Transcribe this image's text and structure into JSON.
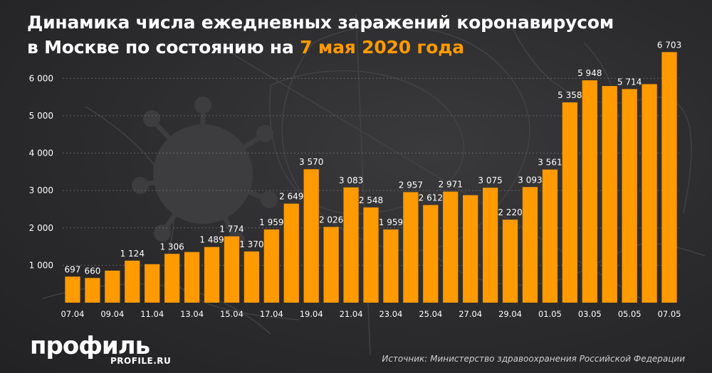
{
  "header": {
    "title_line1": "Динамика числа ежедневных заражений коронавирусом",
    "title_line2_prefix": "в Москве по состоянию на ",
    "title_line2_highlight": "7 мая 2020 года"
  },
  "footer": {
    "brand": "профиль",
    "brand_site": "PROFILE.RU",
    "source": "Источник: Министерство здравоохранения Российской Федерации"
  },
  "colors": {
    "bar": "#ff9a00",
    "highlight": "#ff9a00",
    "text": "#ffffff",
    "grid": "#8a8a8a"
  },
  "chart_data": {
    "type": "bar",
    "title": "",
    "xlabel": "",
    "ylabel": "",
    "ylim": [
      0,
      6500
    ],
    "yticks": [
      1000,
      2000,
      3000,
      4000,
      5000,
      6000
    ],
    "ytick_labels": [
      "1 000",
      "2 000",
      "3 000",
      "4 000",
      "5 000",
      "6 000"
    ],
    "grid": true,
    "categories": [
      "07.04",
      "08.04",
      "09.04",
      "10.04",
      "11.04",
      "12.04",
      "13.04",
      "14.04",
      "15.04",
      "16.04",
      "17.04",
      "18.04",
      "19.04",
      "20.04",
      "21.04",
      "22.04",
      "23.04",
      "24.04",
      "25.04",
      "26.04",
      "27.04",
      "28.04",
      "29.04",
      "30.04",
      "01.05",
      "02.05",
      "03.05",
      "04.05",
      "05.05",
      "06.05",
      "07.05"
    ],
    "xtick_labels": [
      "07.04",
      "09.04",
      "11.04",
      "13.04",
      "15.04",
      "17.04",
      "19.04",
      "21.04",
      "23.04",
      "25.04",
      "27.04",
      "29.04",
      "01.05",
      "03.05",
      "05.05",
      "07.05"
    ],
    "values": [
      697,
      660,
      857,
      1124,
      1030,
      1306,
      1355,
      1489,
      1774,
      1370,
      1959,
      2649,
      3570,
      2026,
      3083,
      2548,
      1959,
      2957,
      2612,
      2971,
      2876,
      3075,
      2220,
      3093,
      3561,
      5358,
      5948,
      5795,
      5714,
      5846,
      6703
    ],
    "value_labels": [
      "697",
      "660",
      "",
      "1 124",
      "",
      "1 306",
      "",
      "1 489",
      "1 774",
      "1 370",
      "1 959",
      "2 649",
      "3 570",
      "2 026",
      "3 083",
      "2 548",
      "1 959",
      "2 957",
      "2 612",
      "2 971",
      "",
      "3 075",
      "2 220",
      "3 093",
      "3 561",
      "5 358",
      "5 948",
      "",
      "5 714",
      "",
      "6 703"
    ]
  }
}
